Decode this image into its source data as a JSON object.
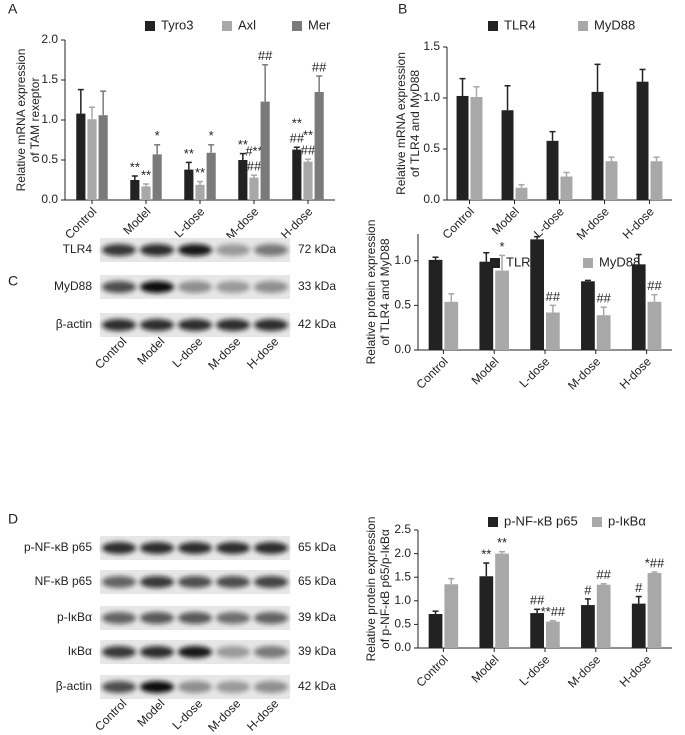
{
  "chart_data": [
    {
      "type": "bar",
      "panel": "A",
      "ylabel": [
        "Relative mRNA expression",
        "of TAM rexeptor"
      ],
      "categories": [
        "Control",
        "Model",
        "L-dose",
        "M-dose",
        "H-dose"
      ],
      "ylim": [
        0,
        2.0
      ],
      "yticks": [
        {
          "value": 0,
          "label": "0.0"
        },
        0.5,
        {
          "value": 1,
          "label": "1.0"
        },
        1.5,
        {
          "value": 2,
          "label": "2.0"
        }
      ],
      "series": [
        {
          "name": "Tyro3",
          "color": "#222222",
          "values": [
            1.08,
            0.25,
            0.38,
            0.5,
            0.63
          ],
          "errors": [
            0.3,
            0.05,
            0.09,
            0.08,
            0.03
          ],
          "annotations": [
            null,
            [
              "**"
            ],
            [
              "**"
            ],
            [
              "**"
            ],
            [
              "##",
              "**"
            ]
          ]
        },
        {
          "name": "Axl",
          "color": "#a8a8a8",
          "values": [
            1.01,
            0.17,
            0.19,
            0.28,
            0.48
          ],
          "errors": [
            0.15,
            0.03,
            0.04,
            0.03,
            0.03
          ],
          "annotations": [
            null,
            [
              "**"
            ],
            [
              "**"
            ],
            [
              "##",
              "#**"
            ],
            [
              "##",
              "**"
            ]
          ]
        },
        {
          "name": "Mer",
          "color": "#7a7a7a",
          "values": [
            1.06,
            0.57,
            0.59,
            1.23,
            1.35
          ],
          "errors": [
            0.3,
            0.12,
            0.1,
            0.46,
            0.2
          ],
          "annotations": [
            null,
            [
              "*"
            ],
            [
              "*"
            ],
            [
              "##"
            ],
            [
              "##"
            ]
          ]
        }
      ]
    },
    {
      "type": "bar",
      "panel": "B",
      "ylabel": [
        "Relative mRNA expression",
        "of TLR4 and MyD88"
      ],
      "categories": [
        "Control",
        "Model",
        "L-dose",
        "M-dose",
        "H-dose"
      ],
      "ylim": [
        0,
        1.5
      ],
      "yticks": [
        {
          "value": 0,
          "label": "0.0"
        },
        0.5,
        {
          "value": 1,
          "label": "1.0"
        },
        1.5
      ],
      "series": [
        {
          "name": "TLR4",
          "color": "#222222",
          "values": [
            1.02,
            0.88,
            0.58,
            1.06,
            1.16
          ],
          "errors": [
            0.17,
            0.24,
            0.09,
            0.27,
            0.12
          ]
        },
        {
          "name": "MyD88",
          "color": "#a8a8a8",
          "values": [
            1.01,
            0.12,
            0.23,
            0.38,
            0.38
          ],
          "errors": [
            0.1,
            0.03,
            0.04,
            0.04,
            0.04
          ]
        }
      ]
    },
    {
      "type": "bar",
      "panel": "C",
      "ylabel": [
        "Relative protein expression",
        "of TLR4 and MyD88"
      ],
      "categories": [
        "Control",
        "Model",
        "L-dose",
        "M-dose",
        "H-dose"
      ],
      "ylim": [
        0,
        1.3
      ],
      "yticks": [
        {
          "value": 0,
          "label": "0.0"
        },
        0.5,
        {
          "value": 1,
          "label": "1.0"
        }
      ],
      "series": [
        {
          "name": "TLR4",
          "color": "#222222",
          "values": [
            1.01,
            0.99,
            1.24,
            0.77,
            0.96
          ],
          "errors": [
            0.03,
            0.1,
            0.03,
            0.01,
            0.11
          ]
        },
        {
          "name": "MyD88",
          "color": "#a8a8a8",
          "values": [
            0.54,
            0.89,
            0.42,
            0.39,
            0.54
          ],
          "errors": [
            0.09,
            0.17,
            0.08,
            0.09,
            0.08
          ],
          "annotations": [
            null,
            [
              "*"
            ],
            [
              "##"
            ],
            [
              "##"
            ],
            [
              "##"
            ]
          ]
        }
      ]
    },
    {
      "type": "bar",
      "panel": "D",
      "ylabel": [
        "Relative protein expression",
        "of p-NF-κB p65/p-IκBα"
      ],
      "categories": [
        "Control",
        "Model",
        "L-dose",
        "M-dose",
        "H-dose"
      ],
      "ylim": [
        0,
        2.5
      ],
      "yticks": [
        {
          "value": 0,
          "label": "0.0"
        },
        0.5,
        {
          "value": 1,
          "label": "1.0"
        },
        1.5,
        {
          "value": 2,
          "label": "2.0"
        },
        2.5
      ],
      "series": [
        {
          "name": "p-NF-κB p65",
          "color": "#222222",
          "values": [
            0.72,
            1.52,
            0.74,
            0.91,
            0.94
          ],
          "errors": [
            0.06,
            0.28,
            0.08,
            0.13,
            0.15
          ],
          "annotations": [
            null,
            [
              "**"
            ],
            [
              "##"
            ],
            [
              "#"
            ],
            [
              "#"
            ]
          ]
        },
        {
          "name": "p-IκBα",
          "color": "#a8a8a8",
          "values": [
            1.35,
            2.0,
            0.56,
            1.34,
            1.59
          ],
          "errors": [
            0.12,
            0.04,
            0.02,
            0.02,
            0.02
          ],
          "annotations": [
            null,
            [
              "**"
            ],
            [
              "**##"
            ],
            [
              "##"
            ],
            [
              "*##"
            ]
          ]
        }
      ]
    }
  ],
  "blots": [
    {
      "rows": [
        {
          "label": "TLR4",
          "size": "72 kDa"
        },
        {
          "label": "MyD88",
          "size": "33 kDa"
        },
        {
          "label": "β-actin",
          "size": "42 kDa"
        }
      ],
      "lanes": [
        "Control",
        "Model",
        "L-dose",
        "M-dose",
        "H-dose"
      ]
    },
    {
      "rows": [
        {
          "label": "p-NF-κB p65",
          "size": "65 kDa"
        },
        {
          "label": "NF-κB p65",
          "size": "65 kDa"
        },
        {
          "label": "p-IκBα",
          "size": "39 kDa"
        },
        {
          "label": "IκBα",
          "size": "39 kDa"
        },
        {
          "label": "β-actin",
          "size": "42 kDa"
        }
      ],
      "lanes": [
        "Control",
        "Model",
        "L-dose",
        "M-dose",
        "H-dose"
      ]
    }
  ]
}
